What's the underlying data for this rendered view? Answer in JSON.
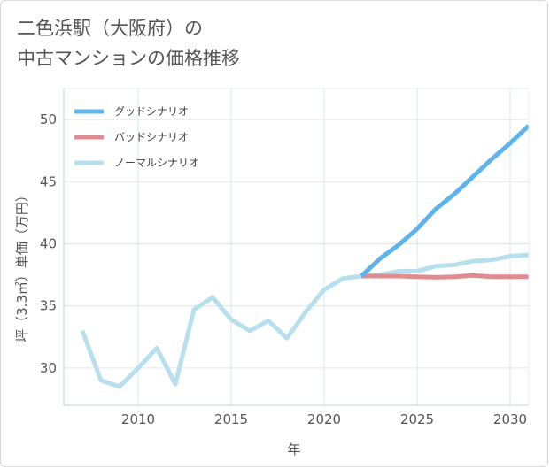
{
  "title": {
    "line1": "二色浜駅（大阪府）の",
    "line2": "中古マンションの価格推移"
  },
  "chart_data": {
    "type": "line",
    "title": "二色浜駅（大阪府）の中古マンションの価格推移",
    "xlabel": "年",
    "ylabel": "坪（3.3㎡）単価（万円）",
    "xlim": [
      2006,
      2031
    ],
    "ylim": [
      27,
      52.5
    ],
    "xticks": [
      2010,
      2015,
      2020,
      2025,
      2030
    ],
    "yticks": [
      30,
      35,
      40,
      45,
      50
    ],
    "grid": true,
    "legend_position": "top-left",
    "series": [
      {
        "name": "グッドシナリオ",
        "color": "#5db4ec",
        "x": [
          2022,
          2023,
          2024,
          2025,
          2026,
          2027,
          2028,
          2029,
          2030,
          2031
        ],
        "values": [
          37.4,
          38.8,
          39.9,
          41.2,
          42.8,
          44.0,
          45.4,
          46.8,
          48.1,
          49.5
        ]
      },
      {
        "name": "バッドシナリオ",
        "color": "#e08b8f",
        "x": [
          2022,
          2023,
          2024,
          2025,
          2026,
          2027,
          2028,
          2029,
          2030,
          2031
        ],
        "values": [
          37.4,
          37.4,
          37.4,
          37.35,
          37.3,
          37.35,
          37.45,
          37.35,
          37.35,
          37.35
        ]
      },
      {
        "name": "ノーマルシナリオ",
        "color": "#b7dfed",
        "x": [
          2007,
          2008,
          2009,
          2010,
          2011,
          2012,
          2013,
          2014,
          2015,
          2016,
          2017,
          2018,
          2019,
          2020,
          2021,
          2022,
          2023,
          2024,
          2025,
          2026,
          2027,
          2028,
          2029,
          2030,
          2031
        ],
        "values": [
          33.0,
          29.0,
          28.5,
          30.0,
          31.6,
          28.7,
          34.7,
          35.7,
          33.9,
          33.0,
          33.8,
          32.4,
          34.5,
          36.3,
          37.2,
          37.4,
          37.5,
          37.8,
          37.8,
          38.2,
          38.3,
          38.6,
          38.7,
          39.0,
          39.1
        ]
      }
    ]
  }
}
